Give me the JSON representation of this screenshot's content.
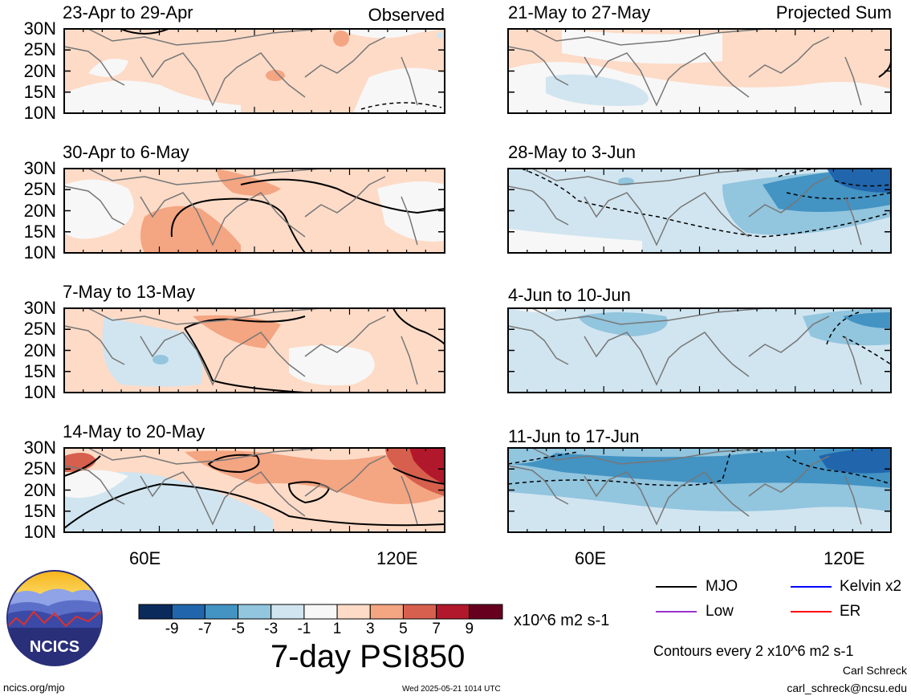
{
  "columns": {
    "left_header": "Observed",
    "right_header": "Projected Sum"
  },
  "panels": [
    {
      "title": "23-Apr to 29-Apr"
    },
    {
      "title": "30-Apr to 6-May"
    },
    {
      "title": "7-May to 13-May"
    },
    {
      "title": "14-May to 20-May"
    },
    {
      "title": "21-May to 27-May"
    },
    {
      "title": "28-May to 3-Jun"
    },
    {
      "title": "4-Jun to 10-Jun"
    },
    {
      "title": "11-Jun to 17-Jun"
    }
  ],
  "lat_labels": [
    "30N",
    "25N",
    "20N",
    "15N",
    "10N"
  ],
  "lon_labels": [
    "60E",
    "120E"
  ],
  "colorbar": {
    "tick_labels": [
      "-9",
      "-7",
      "-5",
      "-3",
      "-1",
      "1",
      "3",
      "5",
      "7",
      "9"
    ],
    "colors": [
      "#0a2a5c",
      "#2166ac",
      "#4393c3",
      "#92c5de",
      "#d1e5f0",
      "#f7f7f7",
      "#fddbc7",
      "#f4a582",
      "#d6604d",
      "#b2182b",
      "#67001f"
    ],
    "units": "x10^6 m2 s-1"
  },
  "variable_title": "7-day PSI850",
  "legend": {
    "items": [
      {
        "label": "MJO",
        "color": "#000000"
      },
      {
        "label": "Kelvin x2",
        "color": "#0000ff"
      },
      {
        "label": "Low",
        "color": "#9933cc"
      },
      {
        "label": "ER",
        "color": "#ff0000"
      }
    ],
    "contour_note": "Contours every 2 x10^6 m2 s-1"
  },
  "logo": {
    "text": "NCICS"
  },
  "footer": {
    "url": "ncics.org/mjo",
    "timestamp": "Wed 2025-05-21 1014 UTC",
    "author": "Carl Schreck",
    "email": "carl_schreck@ncsu.edu"
  }
}
